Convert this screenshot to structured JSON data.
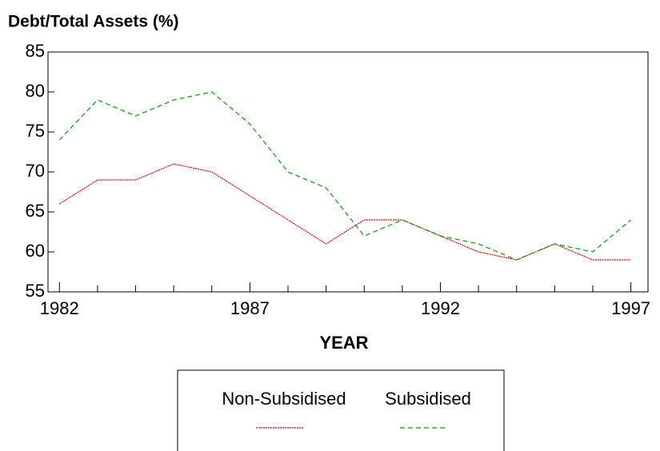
{
  "chart_data": {
    "type": "line",
    "title": "Debt/Total Assets (%)",
    "xlabel": "YEAR",
    "x": [
      1982,
      1983,
      1984,
      1985,
      1986,
      1987,
      1988,
      1989,
      1990,
      1991,
      1992,
      1993,
      1994,
      1995,
      1996,
      1997
    ],
    "series": [
      {
        "name": "Non-Subsidised",
        "color": "#e00000",
        "dash": "dotted",
        "values": [
          66,
          69,
          69,
          71,
          70,
          67,
          64,
          61,
          64,
          64,
          62,
          60,
          59,
          61,
          59,
          59
        ]
      },
      {
        "name": "Subsidised",
        "color": "#00a000",
        "dash": "dashed",
        "values": [
          74,
          79,
          77,
          79,
          80,
          76,
          70,
          68,
          62,
          64,
          62,
          61,
          59,
          61,
          60,
          64
        ]
      }
    ],
    "xlim": [
      1981.7,
      1997.45
    ],
    "xticks": [
      1982,
      1987,
      1992,
      1997
    ],
    "xminorticks": [
      1983,
      1984,
      1985,
      1986,
      1988,
      1989,
      1990,
      1991,
      1993,
      1994,
      1995,
      1996
    ],
    "ylim": [
      55,
      85
    ],
    "yticks": [
      55,
      60,
      65,
      70,
      75,
      80,
      85
    ],
    "grid": false,
    "legend": "bottom"
  }
}
